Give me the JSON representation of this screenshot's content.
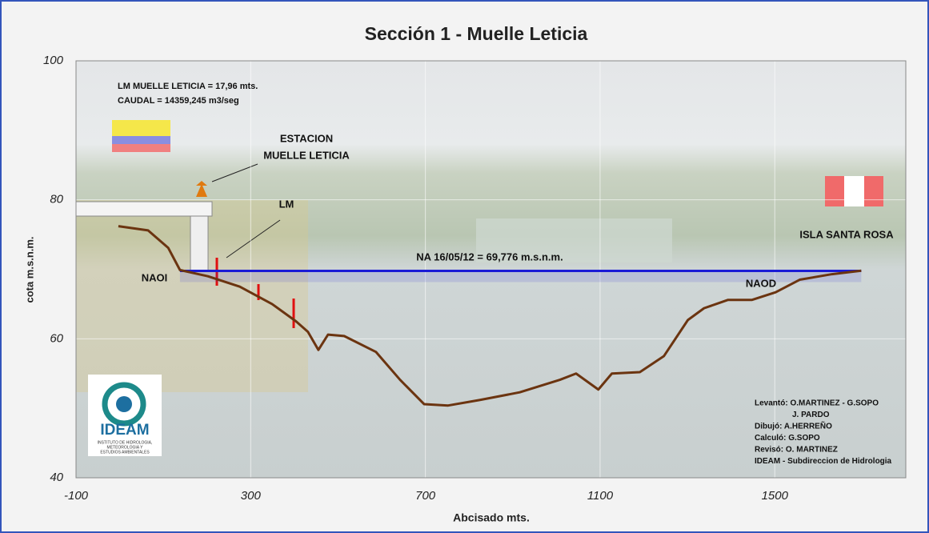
{
  "chart_data": {
    "type": "line",
    "title": "Sección 1 - Muelle Leticia",
    "x_label": "Abcisado mts.",
    "y_label": "cota m.s.n.m.",
    "x": [
      -3,
      65,
      111,
      138,
      202,
      275,
      349,
      404,
      431,
      455,
      477,
      514,
      587,
      642,
      697,
      752,
      825,
      916,
      1008,
      1045,
      1096,
      1127,
      1191,
      1246,
      1301,
      1338,
      1393,
      1448,
      1502,
      1557,
      1631,
      1698
    ],
    "series": [
      {
        "color": "#6b3410",
        "values": [
          76.2,
          75.6,
          73.1,
          69.9,
          69.0,
          67.5,
          65.0,
          62.5,
          61.0,
          58.4,
          60.6,
          60.4,
          58.1,
          54.1,
          50.6,
          50.4,
          51.2,
          52.3,
          54.1,
          55.0,
          52.7,
          55.0,
          55.2,
          57.5,
          62.7,
          64.4,
          65.6,
          65.6,
          66.7,
          68.5,
          69.3,
          69.8
        ]
      }
    ],
    "water_level": 69.776,
    "water_extent": [
      138,
      1698
    ],
    "water_color": "#1a1ad6",
    "xlim": [
      -100,
      1800
    ],
    "ylim": [
      40,
      100
    ],
    "xticks": [
      -100,
      300,
      700,
      1100,
      1500
    ],
    "yticks": [
      40,
      60,
      80,
      100
    ],
    "grid": true,
    "annotations": [
      "LM MUELLE LETICIA = 17,96 mts.",
      "CAUDAL = 14359,245 m3/seg",
      "ESTACION",
      "MUELLE  LETICIA",
      "LM",
      "NA 16/05/12 = 69,776 m.s.n.m.",
      "NAOI",
      "NAOD",
      "ISLA SANTA ROSA"
    ],
    "credits": [
      "Levantó: O.MARTINEZ - G.SOPO",
      "J. PARDO",
      "Dibujó:    A.HERREÑO",
      "Calculó:   G.SOPO",
      "Revisó:    O. MARTINEZ",
      "IDEAM - Subdireccion  de Hidrologia"
    ],
    "logo": {
      "name": "IDEAM",
      "subtitle": [
        "INSTITUTO DE HIDROLOGIA,",
        "METEOROLOGIA Y",
        "ESTUDIOS AMBIENTALES"
      ]
    }
  }
}
